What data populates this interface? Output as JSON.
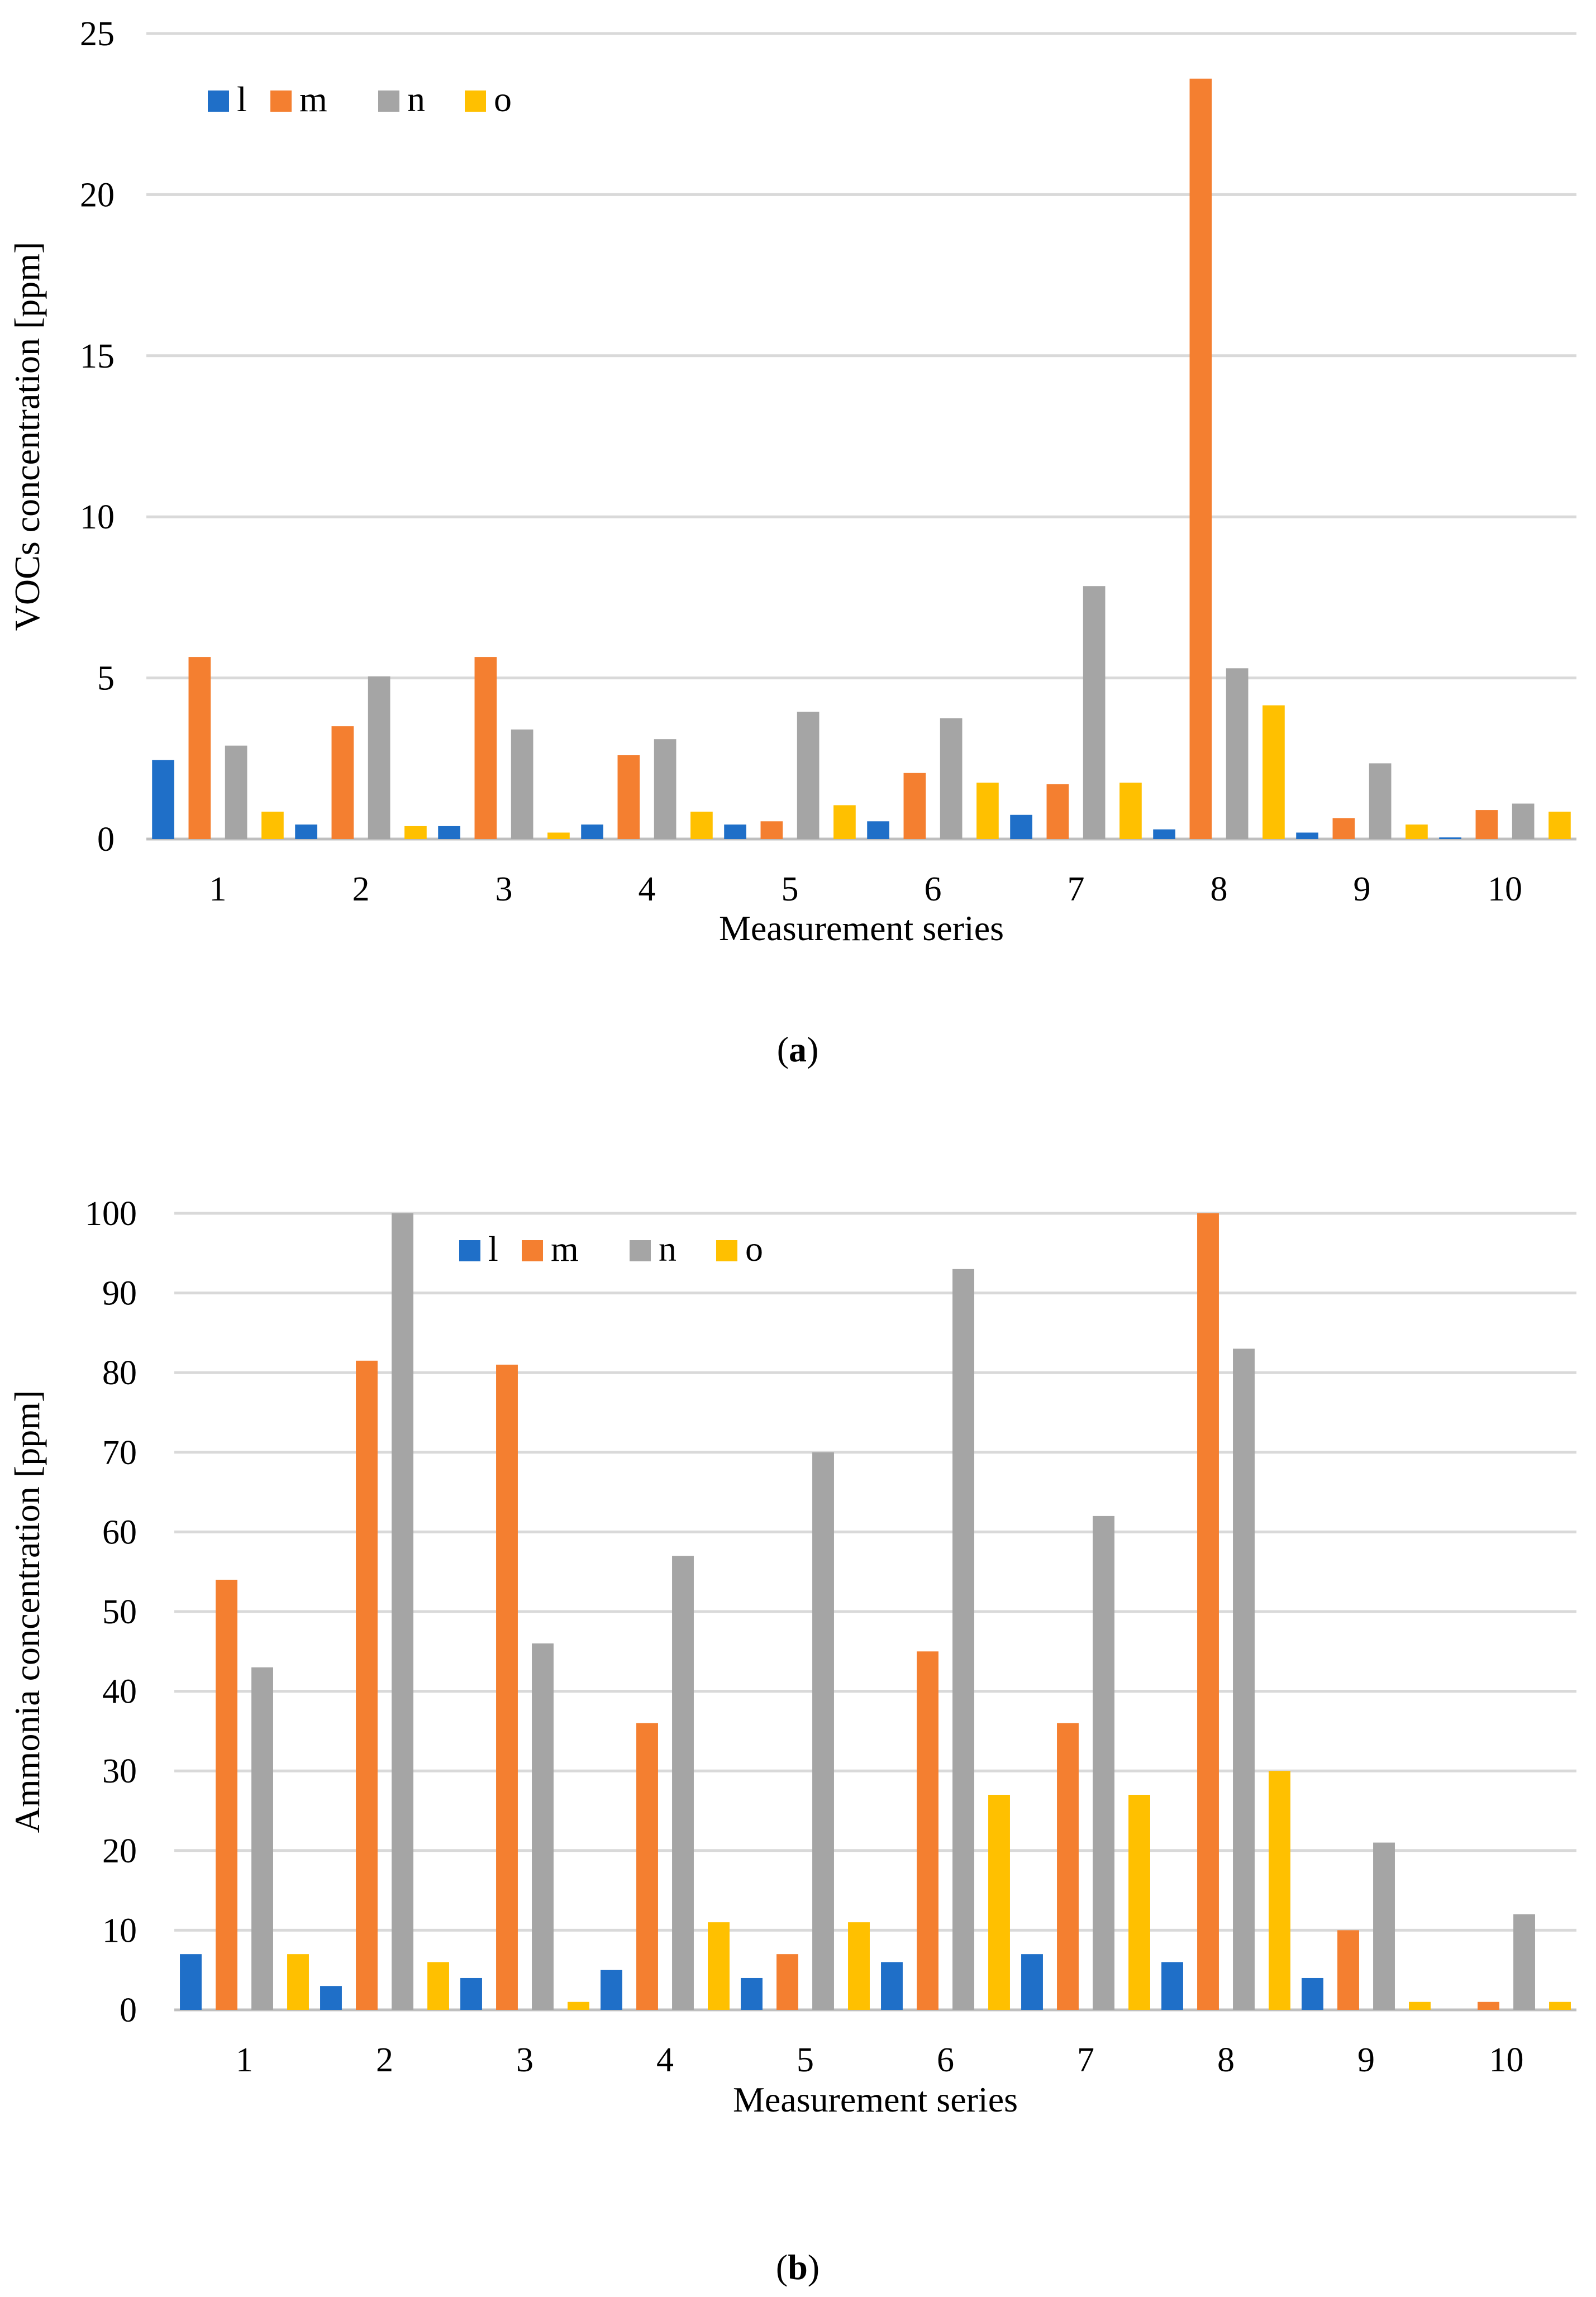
{
  "figure": {
    "caption_a": {
      "open": "(",
      "letter": "a",
      "close": ")"
    },
    "caption_b": {
      "open": "(",
      "letter": "b",
      "close": ")"
    }
  },
  "colors": {
    "l": "#1F6FC8",
    "m": "#F47F30",
    "n": "#A5A5A5",
    "o": "#FFC000",
    "grid": "#D9D9D9",
    "axis": "#BFBFBF"
  },
  "chart_data": [
    {
      "id": "a",
      "type": "bar",
      "title": "",
      "xlabel": "Measurement series",
      "ylabel": "VOCs concentration [ppm]",
      "categories": [
        "1",
        "2",
        "3",
        "4",
        "5",
        "6",
        "7",
        "8",
        "9",
        "10"
      ],
      "ylim": [
        0,
        25
      ],
      "yticks": [
        0,
        5,
        10,
        15,
        20,
        25
      ],
      "grid": true,
      "legend_position": "top-left",
      "series": [
        {
          "name": "l",
          "color": "#1F6FC8",
          "values": [
            2.45,
            0.45,
            0.4,
            0.45,
            0.45,
            0.55,
            0.75,
            0.3,
            0.2,
            0.05
          ]
        },
        {
          "name": "m",
          "color": "#F47F30",
          "values": [
            5.65,
            3.5,
            5.65,
            2.6,
            0.55,
            2.05,
            1.7,
            23.6,
            0.65,
            0.9
          ]
        },
        {
          "name": "n",
          "color": "#A5A5A5",
          "values": [
            2.9,
            5.05,
            3.4,
            3.1,
            3.95,
            3.75,
            7.85,
            5.3,
            2.35,
            1.1
          ]
        },
        {
          "name": "o",
          "color": "#FFC000",
          "values": [
            0.85,
            0.4,
            0.2,
            0.85,
            1.05,
            1.75,
            1.75,
            4.15,
            0.45,
            0.85
          ]
        }
      ]
    },
    {
      "id": "b",
      "type": "bar",
      "title": "",
      "xlabel": "Measurement series",
      "ylabel": "Ammonia concentration [ppm]",
      "categories": [
        "1",
        "2",
        "3",
        "4",
        "5",
        "6",
        "7",
        "8",
        "9",
        "10"
      ],
      "ylim": [
        0,
        100
      ],
      "yticks": [
        0,
        10,
        20,
        30,
        40,
        50,
        60,
        70,
        80,
        90,
        100
      ],
      "grid": true,
      "legend_position": "top-center",
      "series": [
        {
          "name": "l",
          "color": "#1F6FC8",
          "values": [
            7,
            3,
            4,
            5,
            4,
            6,
            7,
            6,
            4,
            0
          ]
        },
        {
          "name": "m",
          "color": "#F47F30",
          "values": [
            54,
            81.5,
            81,
            36,
            7,
            45,
            36,
            100,
            10,
            1
          ]
        },
        {
          "name": "n",
          "color": "#A5A5A5",
          "values": [
            43,
            100,
            46,
            57,
            70,
            93,
            62,
            83,
            21,
            12
          ]
        },
        {
          "name": "o",
          "color": "#FFC000",
          "values": [
            7,
            6,
            1,
            11,
            11,
            27,
            27,
            30,
            1,
            1
          ]
        }
      ]
    }
  ]
}
